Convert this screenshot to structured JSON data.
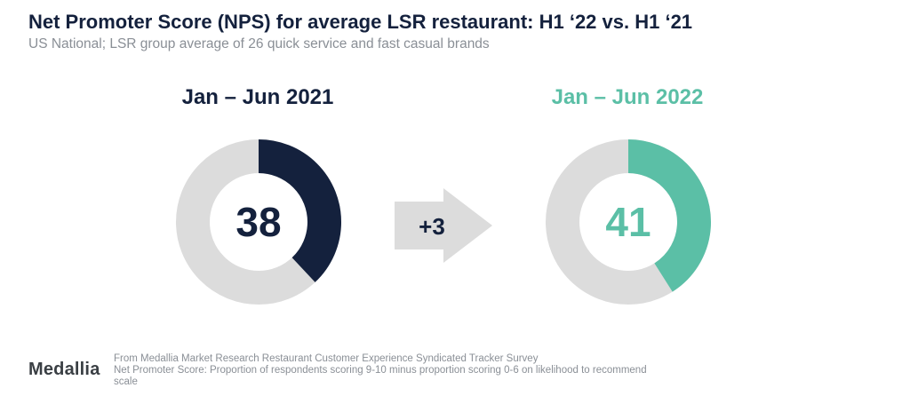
{
  "header": {
    "title": "Net Promoter Score (NPS) for average LSR restaurant: H1 ‘22 vs. H1 ‘21",
    "subtitle": "US National; LSR group average of 26 quick service and fast casual brands"
  },
  "chart_data": {
    "type": "donut",
    "scale_max": 100,
    "series": [
      {
        "period": "Jan – Jun 2021",
        "value": 38,
        "value_label": "38",
        "color": "#14213d"
      },
      {
        "period": "Jan – Jun 2022",
        "value": 41,
        "value_label": "41",
        "color": "#5bbfa6"
      }
    ],
    "track_color": "#dcdcdc",
    "change_label": "+3",
    "change_arrow_color": "#dcdcdc"
  },
  "footer": {
    "brand": "Medallia",
    "source": "From Medallia Market Research Restaurant Customer Experience Syndicated Tracker Survey",
    "definition": "Net Promoter Score: Proportion of respondents scoring 9-10 minus proportion scoring 0-6 on likelihood to recommend scale"
  }
}
